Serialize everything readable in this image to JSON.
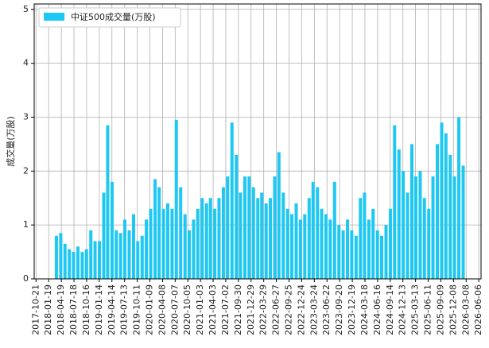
{
  "chart_data": {
    "type": "bar",
    "ylabel": "成交量(万股)",
    "series": [
      {
        "name": "中证500成交量(万股)",
        "color": "#1ec8f2",
        "x": [
          "2018-03-15",
          "2018-04-15",
          "2018-05-15",
          "2018-06-15",
          "2018-07-15",
          "2018-08-15",
          "2018-09-15",
          "2018-10-15",
          "2018-11-15",
          "2018-12-15",
          "2019-01-15",
          "2019-02-15",
          "2019-03-15",
          "2019-04-15",
          "2019-05-15",
          "2019-06-15",
          "2019-07-15",
          "2019-08-15",
          "2019-09-15",
          "2019-10-15",
          "2019-11-15",
          "2019-12-15",
          "2020-01-15",
          "2020-02-15",
          "2020-03-15",
          "2020-04-15",
          "2020-05-15",
          "2020-06-15",
          "2020-07-15",
          "2020-08-15",
          "2020-09-15",
          "2020-10-15",
          "2020-11-15",
          "2020-12-15",
          "2021-01-15",
          "2021-02-15",
          "2021-03-15",
          "2021-04-15",
          "2021-05-15",
          "2021-06-15",
          "2021-07-15",
          "2021-08-15",
          "2021-09-15",
          "2021-10-15",
          "2021-11-15",
          "2021-12-15",
          "2022-01-15",
          "2022-02-15",
          "2022-03-15",
          "2022-04-15",
          "2022-05-15",
          "2022-06-15",
          "2022-07-15",
          "2022-08-15",
          "2022-09-15",
          "2022-10-15",
          "2022-11-15",
          "2022-12-15",
          "2023-01-15",
          "2023-02-15",
          "2023-03-15",
          "2023-04-15",
          "2023-05-15",
          "2023-06-15",
          "2023-07-15",
          "2023-08-15",
          "2023-09-15",
          "2023-10-15",
          "2023-11-15",
          "2023-12-15",
          "2024-01-15",
          "2024-02-15",
          "2024-03-15",
          "2024-04-15",
          "2024-05-15",
          "2024-06-15",
          "2024-07-15",
          "2024-08-15",
          "2024-09-15",
          "2024-10-15",
          "2024-11-15",
          "2024-12-15",
          "2025-01-15",
          "2025-02-15",
          "2025-03-15",
          "2025-04-15",
          "2025-05-15",
          "2025-06-15",
          "2025-07-15",
          "2025-08-15",
          "2025-09-15",
          "2025-10-15",
          "2025-11-15",
          "2025-12-15",
          "2026-01-15",
          "2026-02-15"
        ],
        "values": [
          0.8,
          0.85,
          0.65,
          0.55,
          0.5,
          0.6,
          0.5,
          0.55,
          0.9,
          0.7,
          0.7,
          1.6,
          2.85,
          1.8,
          0.9,
          0.85,
          1.1,
          0.9,
          1.2,
          0.7,
          0.8,
          1.1,
          1.3,
          1.85,
          1.7,
          1.3,
          1.4,
          1.3,
          2.95,
          1.7,
          1.2,
          0.9,
          1.1,
          1.3,
          1.5,
          1.4,
          1.5,
          1.3,
          1.5,
          1.7,
          1.9,
          2.9,
          2.3,
          1.6,
          1.9,
          1.9,
          1.7,
          1.5,
          1.6,
          1.4,
          1.5,
          1.9,
          2.35,
          1.6,
          1.3,
          1.2,
          1.4,
          1.1,
          1.2,
          1.5,
          1.8,
          1.7,
          1.3,
          1.2,
          1.1,
          1.8,
          1.0,
          0.9,
          1.1,
          0.9,
          0.8,
          1.5,
          1.6,
          1.1,
          1.3,
          0.9,
          0.8,
          1.0,
          1.3,
          2.85,
          2.4,
          2.0,
          1.6,
          2.5,
          1.9,
          2.0,
          1.5,
          1.3,
          1.9,
          2.5,
          2.9,
          2.7,
          2.3,
          1.9,
          3.0,
          2.1
        ]
      }
    ],
    "xlim": [
      "2017-10-08",
      "2026-06-22"
    ],
    "xticks": [
      "2017-10-21",
      "2018-01-19",
      "2018-04-19",
      "2018-07-18",
      "2018-10-16",
      "2019-01-14",
      "2019-04-14",
      "2019-07-13",
      "2019-10-11",
      "2020-01-09",
      "2020-04-08",
      "2020-07-07",
      "2020-10-05",
      "2021-01-03",
      "2021-04-03",
      "2021-07-02",
      "2021-09-30",
      "2021-12-29",
      "2022-03-29",
      "2022-06-27",
      "2022-09-25",
      "2022-12-24",
      "2023-03-24",
      "2023-06-22",
      "2023-09-20",
      "2023-12-19",
      "2024-03-18",
      "2024-06-16",
      "2024-09-14",
      "2024-12-13",
      "2025-03-13",
      "2025-06-11",
      "2025-09-09",
      "2025-12-08",
      "2026-03-08",
      "2026-06-06"
    ],
    "ylim": [
      0,
      5.1
    ],
    "yticks": [
      0,
      1,
      2,
      3,
      4,
      5
    ],
    "grid": true,
    "legend": "upper left"
  }
}
